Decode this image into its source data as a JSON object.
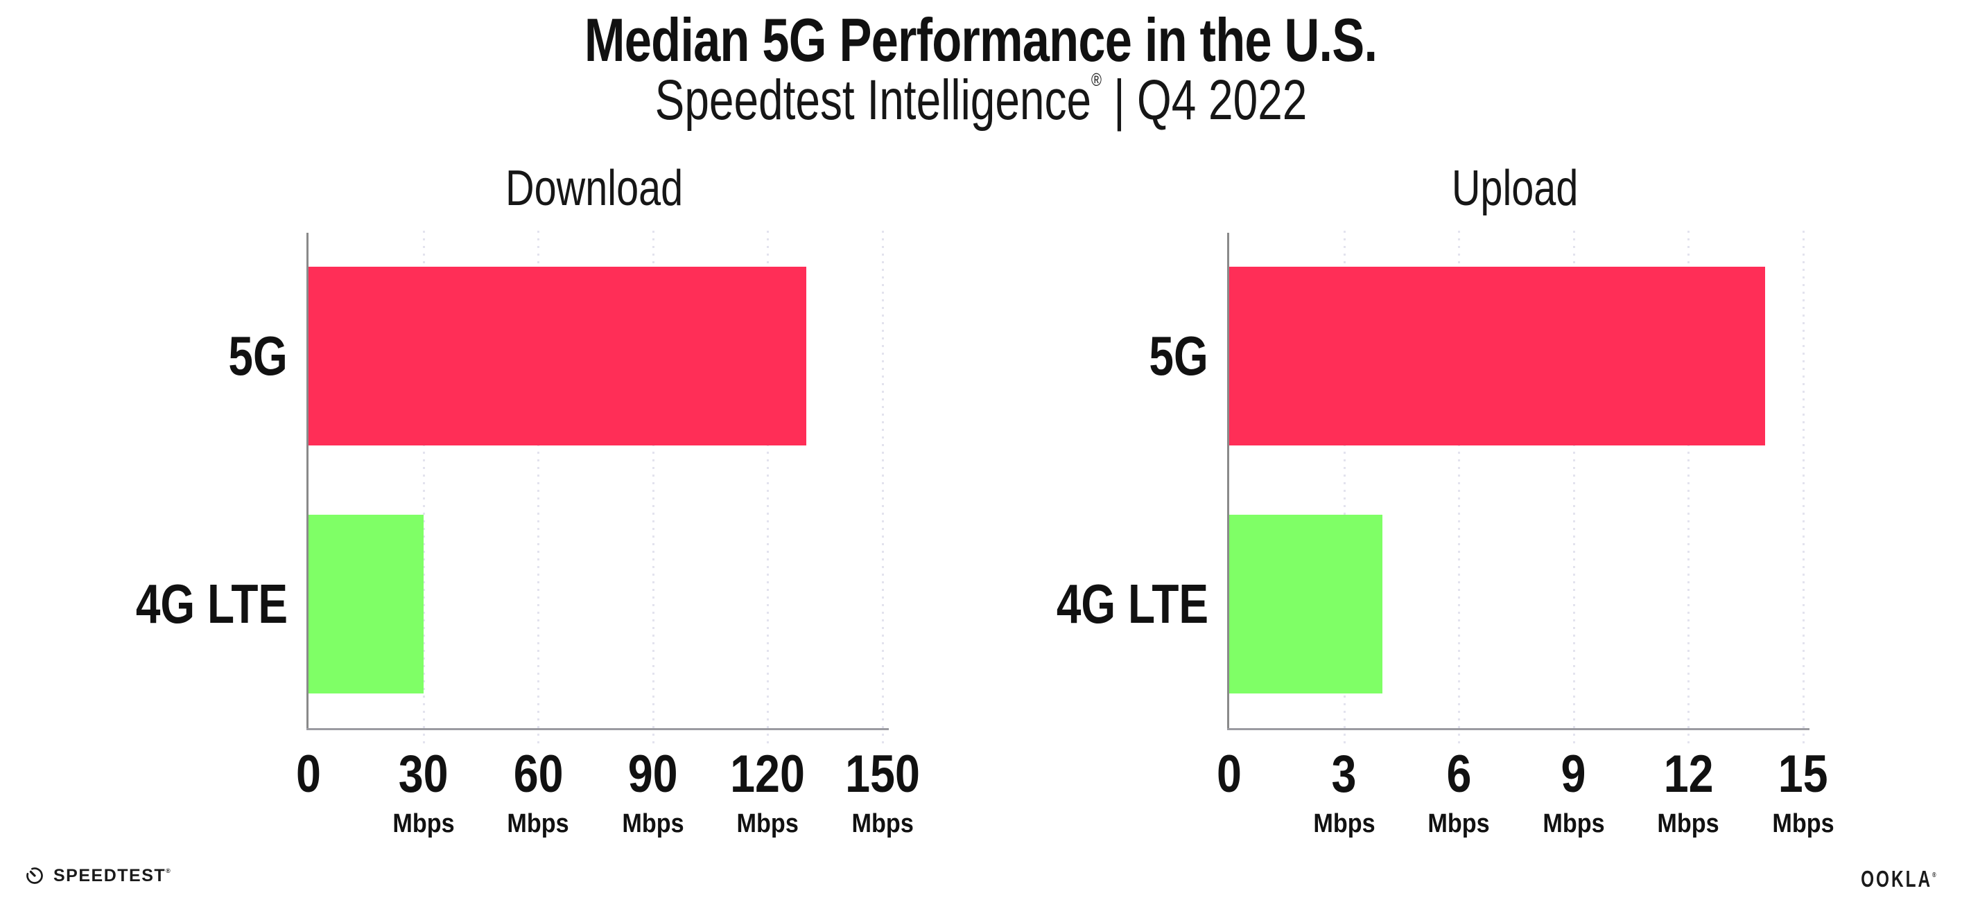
{
  "header": {
    "title": "Median 5G Performance in the U.S.",
    "subtitle_brand": "Speedtest Intelligence",
    "subtitle_reg": "®",
    "subtitle_separator": "|",
    "subtitle_period": "Q4 2022"
  },
  "colors": {
    "bar_5g": "#FF2E57",
    "bar_4g_lte": "#7FFF66",
    "gridline": "#E3E3EE",
    "x_axis": "#9B9BA1",
    "y_axis": "#8A8A8A",
    "text": "#111111"
  },
  "chart_data": [
    {
      "type": "bar",
      "orientation": "horizontal",
      "title": "Download",
      "categories": [
        "5G",
        "4G LTE"
      ],
      "values": [
        130,
        30
      ],
      "unit": "Mbps",
      "xlim": [
        0,
        150
      ],
      "xticks": [
        0,
        30,
        60,
        90,
        120,
        150
      ],
      "grid": "vertical-dotted",
      "legend": "none"
    },
    {
      "type": "bar",
      "orientation": "horizontal",
      "title": "Upload",
      "categories": [
        "5G",
        "4G LTE"
      ],
      "values": [
        14,
        4
      ],
      "unit": "Mbps",
      "xlim": [
        0,
        15
      ],
      "xticks": [
        0,
        3,
        6,
        9,
        12,
        15
      ],
      "grid": "vertical-dotted",
      "legend": "none"
    }
  ],
  "footer": {
    "speedtest_label": "SPEEDTEST",
    "speedtest_reg": "®",
    "ookla_label": "OOKLA",
    "ookla_reg": "®"
  }
}
